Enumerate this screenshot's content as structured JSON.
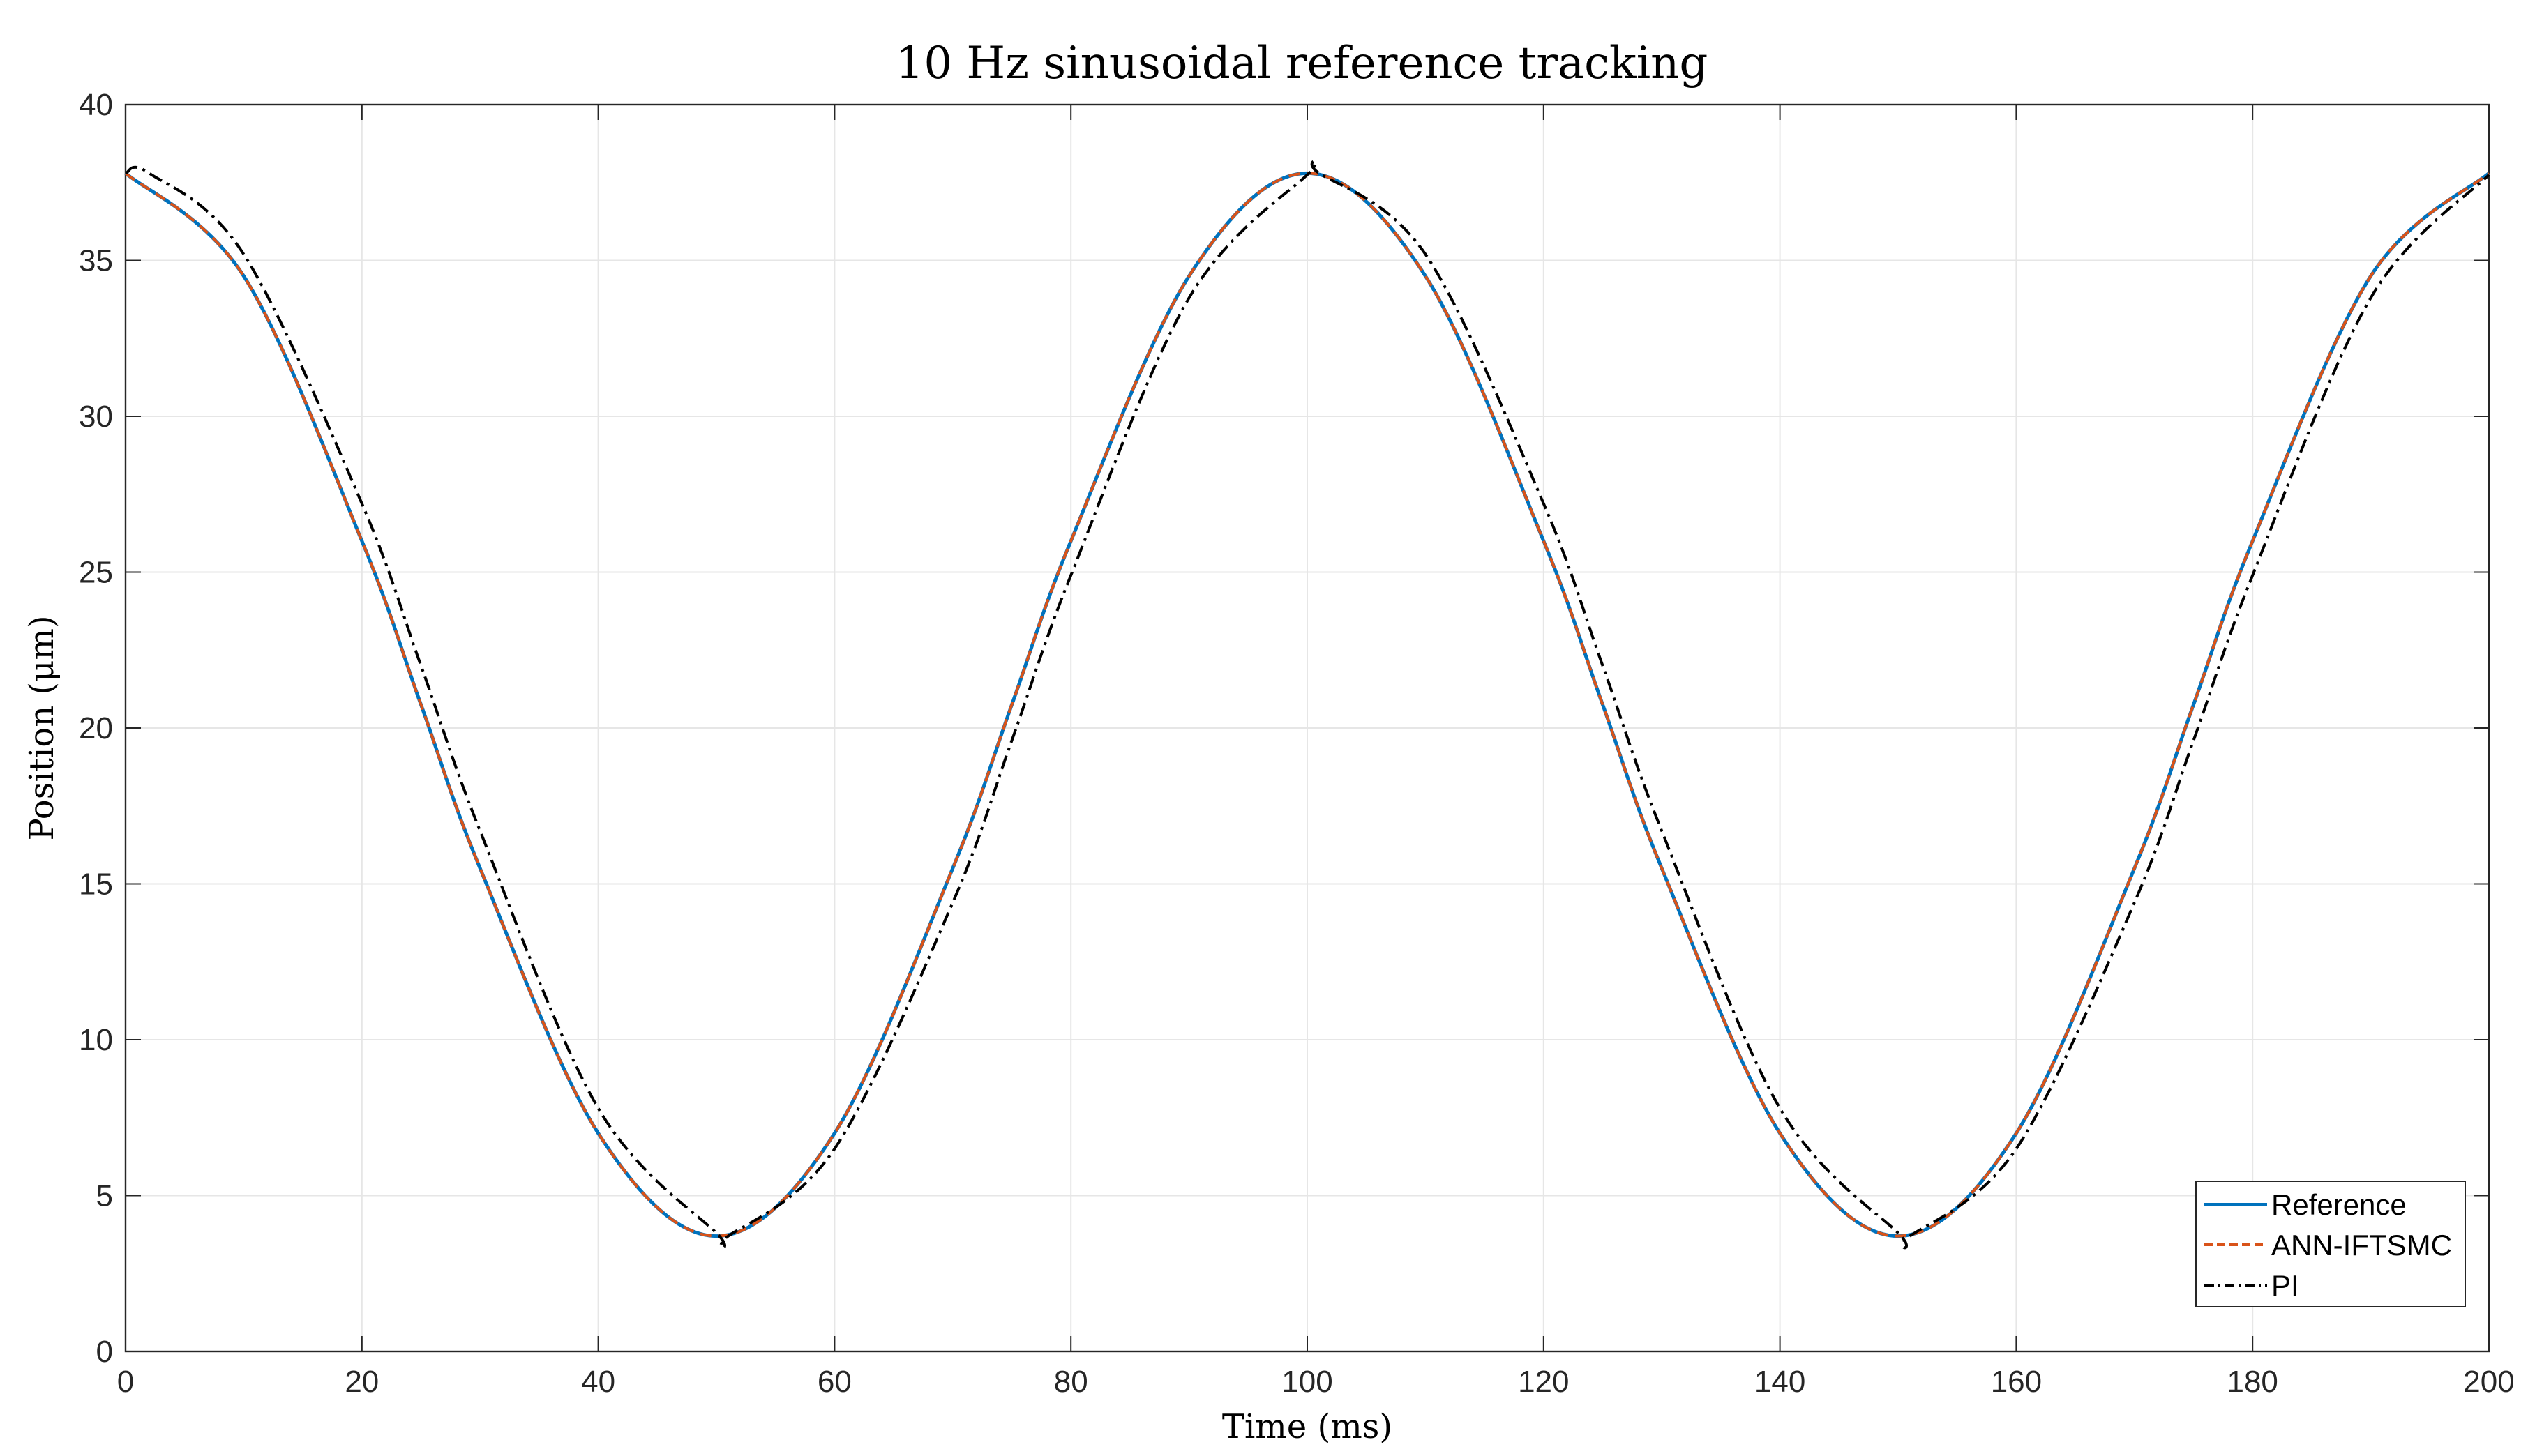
{
  "chart_data": {
    "type": "line",
    "title": "10 Hz sinusoidal reference tracking",
    "xlabel": "Time (ms)",
    "ylabel": "Position (μm)",
    "xlim": [
      0,
      200
    ],
    "ylim": [
      0,
      40
    ],
    "xticks": [
      0,
      20,
      40,
      60,
      80,
      100,
      120,
      140,
      160,
      180,
      200
    ],
    "yticks": [
      0,
      5,
      10,
      15,
      20,
      25,
      30,
      35,
      40
    ],
    "grid": true,
    "legend_position": "bottom-right",
    "series": [
      {
        "name": "Reference",
        "color": "#0072BD",
        "style": "solid",
        "x": [
          0,
          10,
          20,
          25,
          30,
          40,
          50,
          60,
          70,
          75,
          80,
          90,
          100,
          110,
          120,
          125,
          130,
          140,
          150,
          160,
          170,
          175,
          180,
          190,
          200
        ],
        "y": [
          37.8,
          34.5,
          26.0,
          20.75,
          15.5,
          7.0,
          3.7,
          7.0,
          15.5,
          20.75,
          26.0,
          34.5,
          37.8,
          34.5,
          26.0,
          20.75,
          15.5,
          7.0,
          3.7,
          7.0,
          15.5,
          20.75,
          26.0,
          34.5,
          37.8
        ]
      },
      {
        "name": "ANN-IFTSMC",
        "color": "#D95319",
        "style": "dashed",
        "x": [
          0,
          10,
          20,
          25,
          30,
          40,
          50,
          60,
          70,
          75,
          80,
          90,
          100,
          110,
          120,
          125,
          130,
          140,
          150,
          160,
          170,
          175,
          180,
          190,
          200
        ],
        "y": [
          37.8,
          34.5,
          26.0,
          20.75,
          15.5,
          7.0,
          3.7,
          7.0,
          15.5,
          20.75,
          26.0,
          34.5,
          37.8,
          34.5,
          26.0,
          20.75,
          15.5,
          7.0,
          3.7,
          7.0,
          15.5,
          20.75,
          26.0,
          34.5,
          37.8
        ]
      },
      {
        "name": "PI",
        "color": "#000000",
        "style": "dashdot",
        "x": [
          0,
          2,
          10,
          20,
          25,
          30,
          40,
          50,
          51,
          60,
          70,
          75,
          80,
          90,
          100,
          101,
          110,
          120,
          125,
          130,
          140,
          150,
          151,
          160,
          170,
          175,
          180,
          190,
          200
        ],
        "y": [
          37.8,
          37.8,
          35.2,
          27.2,
          22.0,
          16.7,
          7.8,
          3.8,
          3.7,
          6.5,
          14.4,
          19.6,
          24.9,
          33.8,
          37.75,
          37.8,
          35.2,
          27.2,
          22.0,
          16.7,
          7.8,
          3.8,
          3.7,
          6.5,
          14.4,
          19.6,
          24.9,
          33.8,
          37.75
        ]
      }
    ]
  }
}
